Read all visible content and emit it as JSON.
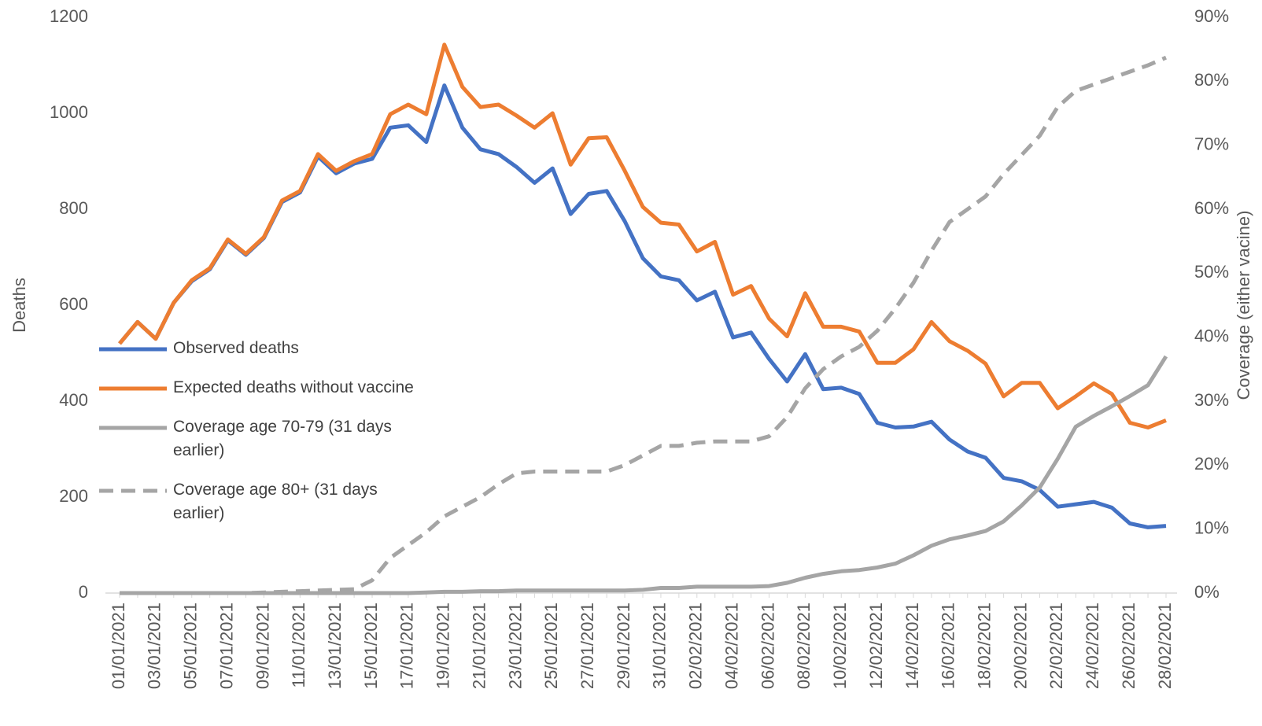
{
  "chart_data": {
    "type": "line",
    "y_label": "Deaths",
    "y2_label": "Coverage (either vacine)",
    "categories": [
      "01/01/2021",
      null,
      "03/01/2021",
      null,
      "05/01/2021",
      null,
      "07/01/2021",
      null,
      "09/01/2021",
      null,
      "11/01/2021",
      null,
      "13/01/2021",
      null,
      "15/01/2021",
      null,
      "17/01/2021",
      null,
      "19/01/2021",
      null,
      "21/01/2021",
      null,
      "23/01/2021",
      null,
      "25/01/2021",
      null,
      "27/01/2021",
      null,
      "29/01/2021",
      null,
      "31/01/2021",
      null,
      "02/02/2021",
      null,
      "04/02/2021",
      null,
      "06/02/2021",
      null,
      "08/02/2021",
      null,
      "10/02/2021",
      null,
      "12/02/2021",
      null,
      "14/02/2021",
      null,
      "16/02/2021",
      null,
      "18/02/2021",
      null,
      "20/02/2021",
      null,
      "22/02/2021",
      null,
      "24/02/2021",
      null,
      "26/02/2021",
      null,
      "28/02/2021"
    ],
    "ylim": [
      0,
      1200
    ],
    "yticks": [
      0,
      200,
      400,
      600,
      800,
      1000,
      1200
    ],
    "y2lim": [
      0,
      90
    ],
    "y2ticks": [
      {
        "value": 0,
        "label": "0%"
      },
      {
        "value": 10,
        "label": "10%"
      },
      {
        "value": 20,
        "label": "20%"
      },
      {
        "value": 30,
        "label": "30%"
      },
      {
        "value": 40,
        "label": "40%"
      },
      {
        "value": 50,
        "label": "50%"
      },
      {
        "value": 60,
        "label": "60%"
      },
      {
        "value": 70,
        "label": "70%"
      },
      {
        "value": 80,
        "label": "80%"
      },
      {
        "value": 90,
        "label": "90%"
      }
    ],
    "grid": false,
    "series": [
      {
        "name": "Observed deaths",
        "color": "#4472c4",
        "line_style": "solid",
        "values": [
          520,
          565,
          530,
          605,
          650,
          675,
          735,
          705,
          740,
          815,
          835,
          910,
          875,
          895,
          905,
          970,
          975,
          940,
          1058,
          970,
          925,
          915,
          888,
          855,
          885,
          790,
          832,
          838,
          775,
          698,
          660,
          652,
          610,
          628,
          533,
          543,
          488,
          441,
          498,
          425,
          428,
          415,
          355,
          345,
          347,
          357,
          320,
          295,
          282,
          240,
          233,
          215,
          180,
          185,
          190,
          178,
          145,
          137,
          140
        ]
      },
      {
        "name": "Expected deaths without vaccine",
        "color": "#ed7d31",
        "line_style": "solid",
        "values": [
          520,
          565,
          530,
          605,
          652,
          677,
          737,
          707,
          742,
          818,
          838,
          915,
          880,
          900,
          915,
          998,
          1018,
          998,
          1143,
          1055,
          1013,
          1018,
          995,
          970,
          1000,
          893,
          948,
          950,
          880,
          805,
          772,
          768,
          712,
          732,
          622,
          640,
          572,
          535,
          625,
          555,
          555,
          545,
          480,
          480,
          508,
          565,
          525,
          505,
          478,
          410,
          438,
          438,
          385,
          410,
          437,
          415,
          355,
          345,
          360
        ]
      },
      {
        "name": "Coverage age 70-79 (31 days earlier)",
        "color": "#a5a5a5",
        "line_style": "solid",
        "axis": "y2",
        "values": [
          0,
          0,
          0,
          0,
          0,
          0,
          0,
          0,
          0,
          0,
          0,
          0,
          0,
          0,
          0,
          0,
          0,
          0.1,
          0.2,
          0.2,
          0.3,
          0.3,
          0.4,
          0.4,
          0.4,
          0.4,
          0.4,
          0.4,
          0.4,
          0.5,
          0.8,
          0.8,
          1,
          1,
          1,
          1,
          1.1,
          1.6,
          2.4,
          3,
          3.4,
          3.6,
          4,
          4.6,
          5.9,
          7.4,
          8.4,
          9,
          9.7,
          11.2,
          13.7,
          16.5,
          21,
          26,
          27.7,
          29.2,
          30.8,
          32.5,
          37
        ]
      },
      {
        "name": "Coverage age 80+ (31 days earlier)",
        "color": "#a5a5a5",
        "line_style": "dashed",
        "axis": "y2",
        "values": [
          0,
          0,
          0,
          0,
          0,
          0,
          0,
          0,
          0.1,
          0.2,
          0.3,
          0.4,
          0.5,
          0.6,
          2,
          5.5,
          7.5,
          9.5,
          12,
          13.5,
          15,
          17,
          18.7,
          19,
          19,
          19,
          19,
          19,
          20,
          21.5,
          23,
          23,
          23.5,
          23.7,
          23.7,
          23.7,
          24.5,
          27.5,
          32,
          35,
          37,
          38.5,
          41,
          44.5,
          48.5,
          53.5,
          58,
          60,
          62,
          65.5,
          68.5,
          71.5,
          76,
          78.5,
          79.5,
          80.5,
          81.5,
          82.5,
          83.7
        ]
      }
    ]
  }
}
